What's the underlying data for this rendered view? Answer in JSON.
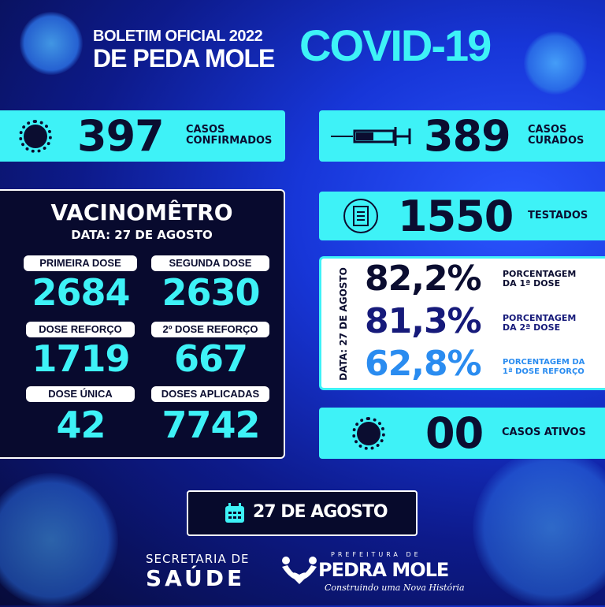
{
  "header": {
    "line1": "BOLETIM OFICIAL 2022",
    "line2": "DE PEDA MOLE",
    "title": "COVID-19"
  },
  "confirmados": {
    "value": "397",
    "label1": "CASOS",
    "label2": "CONFIRMADOS",
    "icon": "virus-icon"
  },
  "curados": {
    "value": "389",
    "label1": "CASOS",
    "label2": "CURADOS",
    "icon": "syringe-icon"
  },
  "testados": {
    "value": "1550",
    "label": "TESTADOS",
    "icon": "clipboard-icon"
  },
  "vacinometro": {
    "title": "VACINOMÊTRO",
    "date": "DATA: 27 DE AGOSTO",
    "items": [
      {
        "label": "PRIMEIRA DOSE",
        "value": "2684"
      },
      {
        "label": "SEGUNDA DOSE",
        "value": "2630"
      },
      {
        "label": "DOSE REFORÇO",
        "value": "1719"
      },
      {
        "label": "2º DOSE REFORÇO",
        "value": "667"
      },
      {
        "label": "DOSE ÚNICA",
        "value": "42"
      },
      {
        "label": "DOSES APLICADAS",
        "value": "7742"
      }
    ]
  },
  "percentages": {
    "date": "DATA: 27 DE AGOSTO",
    "items": [
      {
        "value": "82,2%",
        "label1": "PORCENTAGEM",
        "label2": "DA 1ª DOSE",
        "color": "#0b0d30"
      },
      {
        "value": "81,3%",
        "label1": "PORCENTAGEM",
        "label2": "DA 2ª DOSE",
        "color": "#161a7a"
      },
      {
        "value": "62,8%",
        "label1": "PORCENTAGEM DA",
        "label2": "1ª DOSE REFORÇO",
        "color": "#2a8cf0"
      }
    ]
  },
  "ativos": {
    "value": "00",
    "label": "CASOS ATIVOS"
  },
  "date_badge": {
    "text": "27 DE AGOSTO",
    "icon": "calendar-icon"
  },
  "footer": {
    "secretaria1": "SECRETARIA DE",
    "secretaria2": "SAÚDE",
    "prefeitura": "PREFEITURA DE",
    "city": "PEDRA MOLE",
    "slogan": "Construindo uma Nova História"
  },
  "colors": {
    "cyan": "#3ef2f7",
    "navy": "#0b0d30",
    "blue": "#1736d8"
  }
}
